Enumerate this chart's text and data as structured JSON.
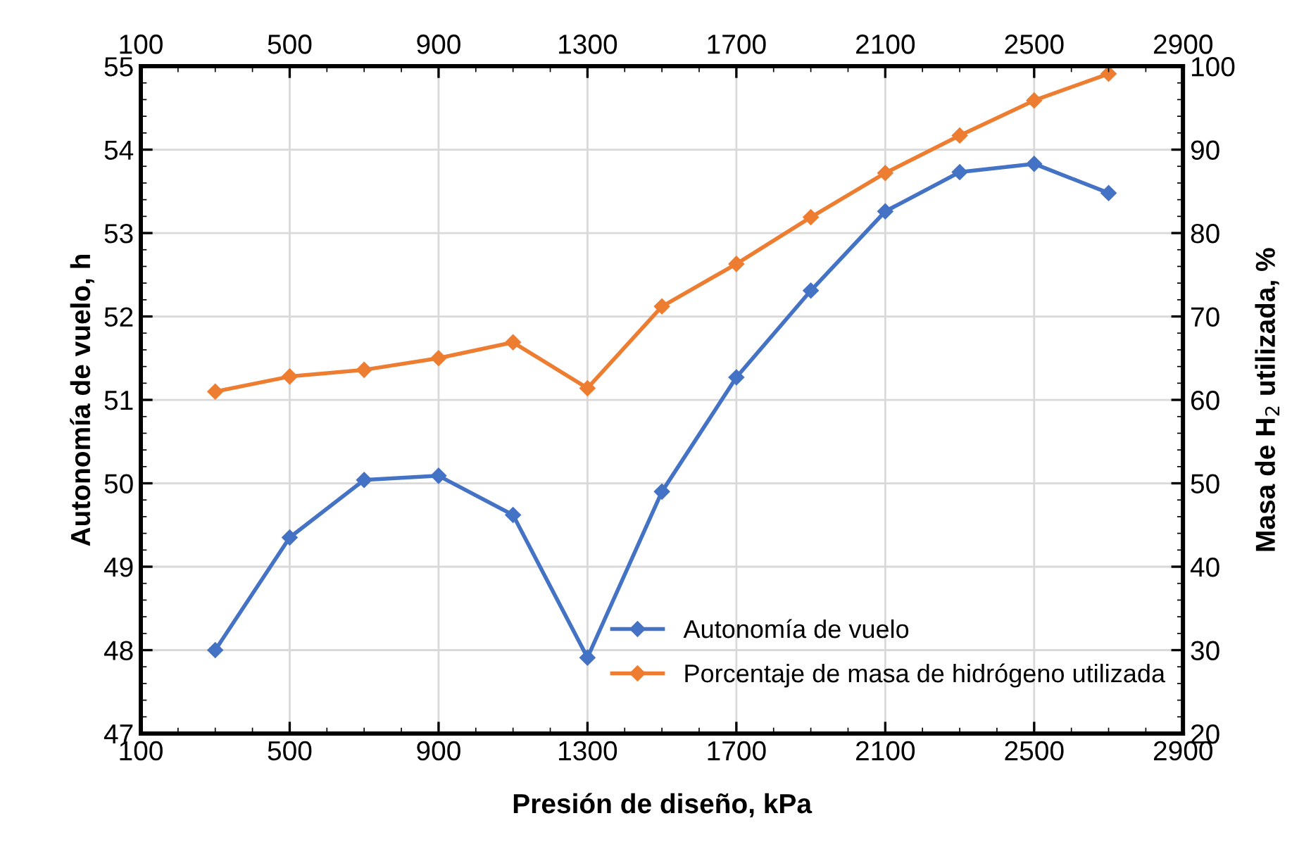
{
  "chart_data": {
    "type": "line",
    "xlabel": "Presión de diseño, kPa",
    "ylabel": "Autonomía de vuelo, h",
    "y2label": "Masa de H$_{2}$ utilizada, %",
    "x": [
      300,
      500,
      700,
      900,
      1100,
      1300,
      1500,
      1700,
      1900,
      2100,
      2300,
      2500,
      2700
    ],
    "series": [
      {
        "name": "Autonomía de vuelo",
        "color": "#4472c4",
        "values": [
          48.0,
          49.35,
          50.04,
          50.09,
          49.62,
          47.91,
          49.9,
          51.27,
          52.31,
          53.26,
          53.73,
          53.83,
          53.48
        ]
      },
      {
        "name": "Porcentaje de masa de hidrógeno utilizada",
        "color": "#ed7d31",
        "axis": "y2",
        "values": [
          61.0,
          62.8,
          63.6,
          65.0,
          66.9,
          61.4,
          71.2,
          76.3,
          81.9,
          87.2,
          91.7,
          95.9,
          99.1
        ]
      }
    ],
    "xlim": [
      100,
      2900
    ],
    "xticks": [
      100,
      500,
      900,
      1300,
      1700,
      2100,
      2500,
      2900
    ],
    "x2lim": [
      100,
      2900
    ],
    "x2ticks": [
      100,
      500,
      900,
      1300,
      1700,
      2100,
      2500,
      2900
    ],
    "ylim": [
      47,
      55
    ],
    "yticks": [
      47,
      48,
      49,
      50,
      51,
      52,
      53,
      54,
      55
    ],
    "y2lim": [
      20,
      100
    ],
    "y2ticks": [
      20,
      30,
      40,
      50,
      60,
      70,
      80,
      90,
      100
    ],
    "grid": true,
    "legend": "center right",
    "marker": "diamond",
    "line_style": "solid"
  }
}
